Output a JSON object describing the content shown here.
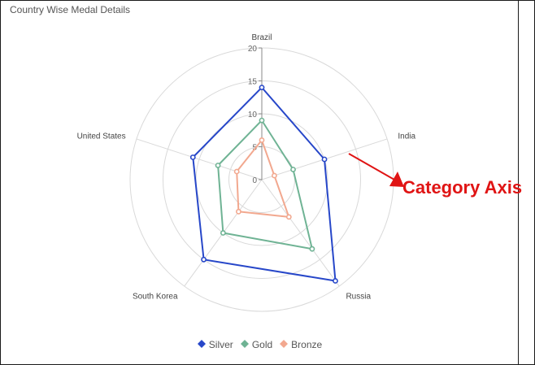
{
  "title": "Country Wise Medal Details",
  "annotation": {
    "label": "Category Axis",
    "color": "#e01414"
  },
  "colors": {
    "Silver": "#2747c9",
    "Gold": "#6fb394",
    "Bronze": "#f2a88f",
    "grid": "#d9d9d9",
    "axis": "#555555"
  },
  "chart_data": {
    "type": "radar",
    "title": "Country Wise Medal Details",
    "categories": [
      "Brazil",
      "India",
      "Russia",
      "South Korea",
      "United States"
    ],
    "rlim": [
      0,
      20
    ],
    "ticks": [
      "0",
      "5",
      "10",
      "15",
      "20"
    ],
    "grid": true,
    "legend_position": "bottom",
    "series": [
      {
        "name": "Silver",
        "values": [
          14,
          10,
          19,
          15,
          11
        ]
      },
      {
        "name": "Gold",
        "values": [
          9,
          5,
          13,
          10,
          7
        ]
      },
      {
        "name": "Bronze",
        "values": [
          6,
          2,
          7,
          6,
          4
        ]
      }
    ]
  }
}
